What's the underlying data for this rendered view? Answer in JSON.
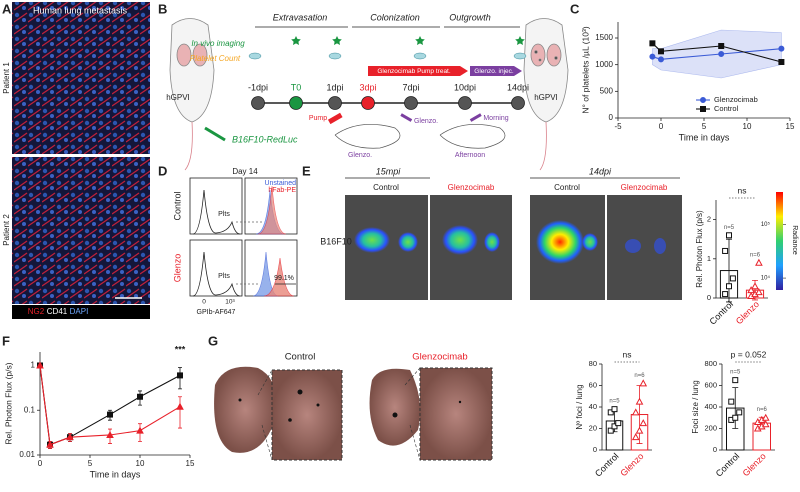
{
  "panel_labels": [
    "A",
    "B",
    "C",
    "D",
    "E",
    "F",
    "G"
  ],
  "panel_a": {
    "title": "Human lung metastasis",
    "rows": [
      "Patient 1",
      "Patient 2"
    ],
    "stains": [
      "NG2",
      "CD41",
      "DAPI"
    ]
  },
  "panel_b": {
    "phases": [
      "Extravasation",
      "Colonization",
      "Outgrowth"
    ],
    "in_vivo_imaging": "In vivo imaging",
    "platelet_count": "Platelet Count",
    "timepoints": [
      "-1dpi",
      "T0",
      "1dpi",
      "3dpi",
      "7dpi",
      "10dpi",
      "14dpi"
    ],
    "treatments": [
      "Glenzocimab Pump treat.",
      "Glenzo. injec."
    ],
    "mouse_model": "hGPVI",
    "cell_line": "B16F10-RedLuc",
    "schedule": [
      "Pump",
      "Glenzo.",
      "Glenzo.",
      "Morning",
      "Afternoon"
    ]
  },
  "panel_d": {
    "title": "Day 14",
    "rows": [
      "Control",
      "Glenzo"
    ],
    "gate": "Plts",
    "legend": [
      "Unstained",
      "hFab-PE"
    ],
    "percentage": "99.1%",
    "ticks": [
      0,
      {
        "value": 1000,
        "label": "10³"
      }
    ],
    "xlabel": "GPIb-AF647"
  },
  "panel_e": {
    "timepoints": [
      "15mpi",
      "14dpi"
    ],
    "conditions": [
      "Control",
      "Glenzocimab"
    ],
    "cell_line": "B16F10",
    "colorbar": {
      "label": "Radiance",
      "clim": [
        6000,
        400000
      ],
      "ticks": [
        {
          "value": 100000,
          "label": "10⁵"
        },
        {
          "value": 10000,
          "label": "10⁴"
        }
      ]
    }
  },
  "panel_g": {
    "conditions": [
      "Control",
      "Glenzocimab"
    ]
  },
  "chart_data": [
    {
      "type": "line",
      "xlabel": "Time in days",
      "ylabel": "N° of platelets /µL (10³)",
      "x": [
        -1,
        0,
        7,
        14
      ],
      "xlim": [
        -5,
        15
      ],
      "xticks": [
        -5,
        0,
        5,
        10,
        15
      ],
      "ylim": [
        0,
        1800
      ],
      "yticks": [
        0,
        500,
        1000,
        1500
      ],
      "legend": "lower right",
      "series": [
        {
          "name": "Glenzocimab",
          "color": "#3b5bd6",
          "marker": "circle",
          "error_style": "band",
          "values": [
            1150,
            1100,
            1200,
            1300
          ],
          "errors": [
            150,
            200,
            450,
            300
          ]
        },
        {
          "name": "Control",
          "color": "#111111",
          "marker": "square",
          "error_style": "none",
          "values": [
            1400,
            1250,
            1350,
            1050
          ],
          "errors": [
            100,
            150,
            300,
            150
          ]
        }
      ]
    },
    {
      "type": "line",
      "xlabel": "Time in days",
      "ylabel": "Rel. Photon Flux (p/s)",
      "x": [
        0,
        1,
        3,
        7,
        10,
        14
      ],
      "log": true,
      "xlim": [
        0,
        15
      ],
      "xticks": [
        0,
        5,
        10,
        15
      ],
      "ylim": [
        0.01,
        2
      ],
      "yticks": [
        0.01,
        0.1,
        1
      ],
      "annotation": "***",
      "series": [
        {
          "color": "#111111",
          "marker": "square",
          "error_style": "bars",
          "values": [
            1,
            0.017,
            0.025,
            0.08,
            0.2,
            0.6
          ],
          "errors": [
            0,
            0.003,
            0.005,
            0.02,
            0.07,
            0.3
          ]
        },
        {
          "color": "#e8212a",
          "marker": "triangle",
          "error_style": "bars",
          "values": [
            1,
            0.017,
            0.025,
            0.028,
            0.035,
            0.12
          ],
          "errors": [
            0,
            0.003,
            0.005,
            0.01,
            0.015,
            0.08
          ]
        }
      ]
    },
    {
      "type": "bar",
      "ylabel": "Rel. Photon Flux (p/s)",
      "categories": [
        "Control",
        "Glenzo"
      ],
      "colors": [
        "#111111",
        "#e8212a"
      ],
      "markers": [
        "square",
        "triangle"
      ],
      "ylim": [
        0,
        2.5
      ],
      "yticks": [
        0,
        1,
        2
      ],
      "values": [
        0.7,
        0.2
      ],
      "errors": [
        0.8,
        0.25
      ],
      "points": [
        [
          0.1,
          0.3,
          0.5,
          1.2,
          1.6
        ],
        [
          0.05,
          0.1,
          0.15,
          0.2,
          0.3,
          0.9
        ]
      ],
      "n_labels": [
        "n=5",
        "n=6"
      ],
      "annotation": "ns"
    },
    {
      "type": "bar",
      "ylabel": "Nº foci / lung",
      "categories": [
        "Control",
        "Glenzo"
      ],
      "colors": [
        "#111111",
        "#e8212a"
      ],
      "markers": [
        "square",
        "triangle"
      ],
      "ylim": [
        0,
        80
      ],
      "yticks": [
        0,
        20,
        40,
        60,
        80
      ],
      "values": [
        27,
        33
      ],
      "errors": [
        10,
        27
      ],
      "points": [
        [
          18,
          22,
          25,
          35,
          38
        ],
        [
          12,
          18,
          25,
          35,
          45,
          62
        ]
      ],
      "n_labels": [
        "n=5",
        "n=6"
      ],
      "annotation": "ns"
    },
    {
      "type": "bar",
      "ylabel": "Foci size / lung",
      "categories": [
        "Control",
        "Glenzo"
      ],
      "colors": [
        "#111111",
        "#e8212a"
      ],
      "markers": [
        "square",
        "triangle"
      ],
      "ylim": [
        0,
        800
      ],
      "yticks": [
        0,
        200,
        400,
        600,
        800
      ],
      "values": [
        390,
        250
      ],
      "errors": [
        190,
        55
      ],
      "points": [
        [
          280,
          300,
          350,
          450,
          650
        ],
        [
          200,
          220,
          240,
          260,
          280,
          300
        ]
      ],
      "n_labels": [
        "n=5",
        "n=6"
      ],
      "annotation": "p = 0.052"
    }
  ]
}
